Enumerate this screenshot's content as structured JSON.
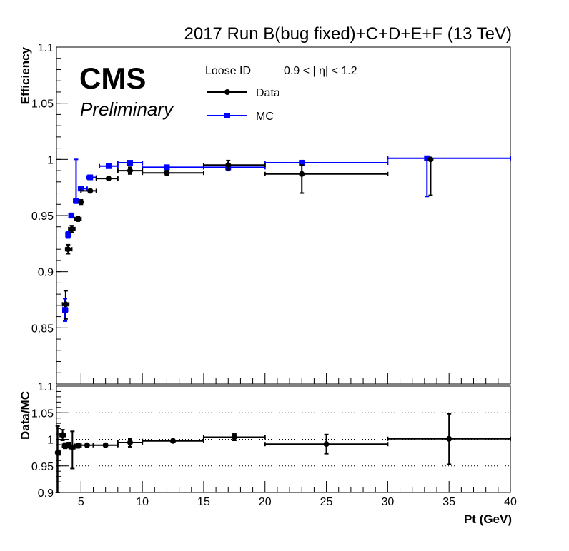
{
  "chart_data": [
    {
      "type": "scatter",
      "title": "2017 Run B(bug fixed)+C+D+E+F (13 TeV)",
      "cms_label": "CMS",
      "preliminary_label": "Preliminary",
      "selection_label": "Loose ID",
      "eta_label": "0.9 < | η| < 1.2",
      "ylabel": "Efficiency",
      "xlim": [
        3,
        40
      ],
      "ylim": [
        0.8,
        1.1
      ],
      "y_ticks": [
        0.85,
        0.9,
        0.95,
        1,
        1.05,
        1.1
      ],
      "y_tick_labels": [
        "0.85",
        "0.9",
        "0.95",
        "1",
        "1.05",
        "1.1"
      ],
      "legend_position": "top-center",
      "colors": {
        "Data": "#000000",
        "MC": "#0000ff"
      },
      "series": [
        {
          "name": "Data",
          "marker": "circle",
          "points": [
            {
              "x": 3.75,
              "xlo": 3.5,
              "xhi": 4.0,
              "y": 0.871,
              "elo": 0.013,
              "ehi": 0.012
            },
            {
              "x": 3.95,
              "xlo": 3.75,
              "xhi": 4.25,
              "y": 0.92,
              "elo": 0.004,
              "ehi": 0.004
            },
            {
              "x": 4.25,
              "xlo": 4.0,
              "xhi": 4.5,
              "y": 0.938,
              "elo": 0.003,
              "ehi": 0.003
            },
            {
              "x": 4.75,
              "xlo": 4.5,
              "xhi": 5.0,
              "y": 0.947,
              "elo": 0.002,
              "ehi": 0.002
            },
            {
              "x": 5.0,
              "xlo": 5.0,
              "xhi": 5.0,
              "y": 0.962,
              "elo": 0.002,
              "ehi": 0.002
            },
            {
              "x": 5.75,
              "xlo": 5.0,
              "xhi": 6.25,
              "y": 0.972,
              "elo": 0.001,
              "ehi": 0.001
            },
            {
              "x": 7.25,
              "xlo": 6.25,
              "xhi": 8.0,
              "y": 0.983,
              "elo": 0.001,
              "ehi": 0.001
            },
            {
              "x": 9.0,
              "xlo": 8.0,
              "xhi": 10.0,
              "y": 0.99,
              "elo": 0.003,
              "ehi": 0.003
            },
            {
              "x": 12.0,
              "xlo": 10.0,
              "xhi": 15.0,
              "y": 0.988,
              "elo": 0.002,
              "ehi": 0.002
            },
            {
              "x": 17.0,
              "xlo": 15.0,
              "xhi": 20.0,
              "y": 0.995,
              "elo": 0.004,
              "ehi": 0.004
            },
            {
              "x": 23.0,
              "xlo": 20.0,
              "xhi": 30.0,
              "y": 0.987,
              "elo": 0.017,
              "ehi": 0.008
            },
            {
              "x": 33.5,
              "xlo": 33.5,
              "xhi": 33.5,
              "y": 1.0,
              "elo": 0.032,
              "ehi": 0.0
            }
          ]
        },
        {
          "name": "MC",
          "marker": "square",
          "points": [
            {
              "x": 3.7,
              "xlo": 3.6,
              "xhi": 3.9,
              "y": 0.866,
              "elo": 0.01,
              "ehi": 0.01
            },
            {
              "x": 3.95,
              "xlo": 3.85,
              "xhi": 4.1,
              "y": 0.933,
              "elo": 0.003,
              "ehi": 0.003
            },
            {
              "x": 4.2,
              "xlo": 4.1,
              "xhi": 4.4,
              "y": 0.95,
              "elo": 0.002,
              "ehi": 0.002
            },
            {
              "x": 4.6,
              "xlo": 4.4,
              "xhi": 4.8,
              "y": 0.963,
              "elo": 0.002,
              "ehi": 0.037
            },
            {
              "x": 5.0,
              "xlo": 4.8,
              "xhi": 5.5,
              "y": 0.974,
              "elo": 0.001,
              "ehi": 0.001
            },
            {
              "x": 5.75,
              "xlo": 5.5,
              "xhi": 6.25,
              "y": 0.984,
              "elo": 0.001,
              "ehi": 0.001
            },
            {
              "x": 7.25,
              "xlo": 6.5,
              "xhi": 8.0,
              "y": 0.994,
              "elo": 0.001,
              "ehi": 0.001
            },
            {
              "x": 9.0,
              "xlo": 8.0,
              "xhi": 10.0,
              "y": 0.997,
              "elo": 0.001,
              "ehi": 0.001
            },
            {
              "x": 12.0,
              "xlo": 10.0,
              "xhi": 15.0,
              "y": 0.993,
              "elo": 0.001,
              "ehi": 0.001
            },
            {
              "x": 17.0,
              "xlo": 15.0,
              "xhi": 20.0,
              "y": 0.993,
              "elo": 0.003,
              "ehi": 0.003
            },
            {
              "x": 23.0,
              "xlo": 20.0,
              "xhi": 30.0,
              "y": 0.997,
              "elo": 0.002,
              "ehi": 0.002
            },
            {
              "x": 33.2,
              "xlo": 30.0,
              "xhi": 40.0,
              "y": 1.001,
              "elo": 0.034,
              "ehi": 0.0
            }
          ]
        }
      ]
    },
    {
      "type": "scatter",
      "ylabel": "Data/MC",
      "xlabel": "Pt (GeV)",
      "xlim": [
        3,
        40
      ],
      "ylim": [
        0.9,
        1.1
      ],
      "x_ticks": [
        5,
        10,
        15,
        20,
        25,
        30,
        35,
        40
      ],
      "x_tick_labels": [
        "5",
        "10",
        "15",
        "20",
        "25",
        "30",
        "35",
        "40"
      ],
      "y_ticks": [
        0.9,
        0.95,
        1,
        1.05,
        1.1
      ],
      "y_tick_labels": [
        "0.9",
        "0.95",
        "1",
        "1.05",
        "1.1"
      ],
      "dotted_reference_lines": [
        0.95,
        1.0,
        1.05
      ],
      "series": [
        {
          "marker": "circle",
          "points": [
            {
              "x": 3.1,
              "xlo": 3.0,
              "xhi": 3.3,
              "y": 0.975,
              "elo": 0.075,
              "ehi": 0.05
            },
            {
              "x": 3.5,
              "xlo": 3.3,
              "xhi": 3.7,
              "y": 1.008,
              "elo": 0.01,
              "ehi": 0.01
            },
            {
              "x": 3.7,
              "xlo": 3.5,
              "xhi": 3.9,
              "y": 0.988,
              "elo": 0.005,
              "ehi": 0.005
            },
            {
              "x": 4.0,
              "xlo": 3.9,
              "xhi": 4.1,
              "y": 0.989,
              "elo": 0.005,
              "ehi": 0.005
            },
            {
              "x": 4.3,
              "xlo": 4.1,
              "xhi": 4.5,
              "y": 0.985,
              "elo": 0.04,
              "ehi": 0.03
            },
            {
              "x": 4.75,
              "xlo": 4.5,
              "xhi": 5.0,
              "y": 0.988,
              "elo": 0.004,
              "ehi": 0.004
            },
            {
              "x": 5.5,
              "xlo": 5.0,
              "xhi": 6.0,
              "y": 0.989,
              "elo": 0.003,
              "ehi": 0.003
            },
            {
              "x": 7.0,
              "xlo": 6.0,
              "xhi": 8.0,
              "y": 0.989,
              "elo": 0.002,
              "ehi": 0.002
            },
            {
              "x": 9.0,
              "xlo": 8.0,
              "xhi": 10.0,
              "y": 0.994,
              "elo": 0.008,
              "ehi": 0.008
            },
            {
              "x": 12.5,
              "xlo": 10.0,
              "xhi": 15.0,
              "y": 0.997,
              "elo": 0.003,
              "ehi": 0.003
            },
            {
              "x": 17.5,
              "xlo": 15.0,
              "xhi": 20.0,
              "y": 1.004,
              "elo": 0.006,
              "ehi": 0.006
            },
            {
              "x": 25.0,
              "xlo": 20.0,
              "xhi": 30.0,
              "y": 0.991,
              "elo": 0.018,
              "ehi": 0.018
            },
            {
              "x": 35.0,
              "xlo": 30.0,
              "xhi": 40.0,
              "y": 1.001,
              "elo": 0.048,
              "ehi": 0.047
            }
          ]
        }
      ]
    }
  ]
}
